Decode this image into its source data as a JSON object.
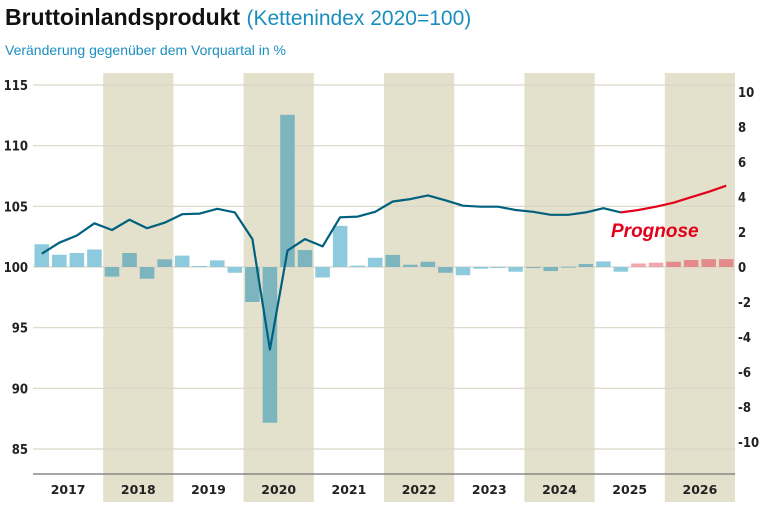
{
  "header": {
    "title": "Bruttoinlandsprodukt",
    "title_suffix": "(Kettenindex 2020=100)",
    "subtitle": "Veränderung gegenüber dem Vorquartal in %"
  },
  "chart_data": {
    "type": "bar+line",
    "title": "Bruttoinlandsprodukt",
    "subtitle": "Veränderung gegenüber dem Vorquartal in %",
    "years": [
      "2017",
      "2018",
      "2019",
      "2020",
      "2021",
      "2022",
      "2023",
      "2024",
      "2025",
      "2026"
    ],
    "shaded_years": [
      "2018",
      "2020",
      "2022",
      "2024",
      "2026"
    ],
    "quarters_per_year": 4,
    "left_axis": {
      "label": "Kettenindex 2020=100",
      "ylim": [
        83,
        116
      ],
      "ticks": [
        85,
        90,
        95,
        100,
        105,
        110,
        115
      ]
    },
    "right_axis": {
      "label": "Veränderung gegenüber dem Vorquartal in %",
      "ylim": [
        -11.5,
        11
      ],
      "ticks": [
        -10,
        -8,
        -6,
        -4,
        -2,
        0,
        2,
        4,
        6,
        8,
        10
      ]
    },
    "grid": true,
    "annotation": "Prognose",
    "forecast_start_index": 34,
    "colors": {
      "line": "#00617f",
      "forecast_line": "#e2001a",
      "bar": "#8ecadd",
      "bar_shaded": "#7db5bf",
      "forecast_bar": "#f2a7ae",
      "forecast_bar_shaded": "#e38a8c",
      "shade": "#e3e0cb"
    },
    "series": [
      {
        "name": "Veränderung gegenüber dem Vorquartal in %",
        "type": "bar",
        "axis": "right",
        "values": [
          1.3,
          0.7,
          0.8,
          1.0,
          -0.55,
          0.8,
          -0.67,
          0.44,
          0.65,
          0.06,
          0.38,
          -0.33,
          -2.0,
          -8.9,
          8.7,
          0.97,
          -0.6,
          2.35,
          0.08,
          0.53,
          0.69,
          0.13,
          0.3,
          -0.33,
          -0.47,
          -0.1,
          0.0,
          -0.27,
          -0.06,
          -0.23,
          0.02,
          0.17,
          0.32,
          -0.27,
          0.2,
          0.25,
          0.3,
          0.4,
          0.45,
          0.45
        ]
      },
      {
        "name": "Kettenindex 2020=100",
        "type": "line",
        "axis": "left",
        "values": [
          101.1,
          102.0,
          102.6,
          103.6,
          103.05,
          103.9,
          103.2,
          103.65,
          104.35,
          104.4,
          104.8,
          104.5,
          102.3,
          93.2,
          101.35,
          102.3,
          101.7,
          104.1,
          104.15,
          104.55,
          105.4,
          105.6,
          105.9,
          105.5,
          105.05,
          104.97,
          104.97,
          104.7,
          104.55,
          104.3,
          104.3,
          104.5,
          104.85,
          104.5,
          104.7,
          104.97,
          105.3,
          105.75,
          106.2,
          106.7
        ]
      }
    ]
  }
}
